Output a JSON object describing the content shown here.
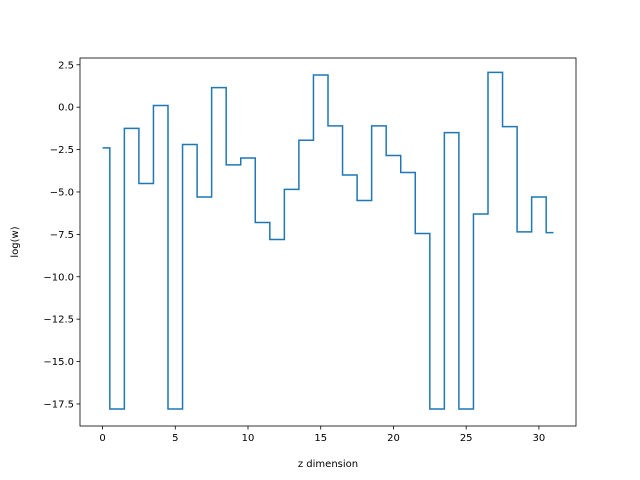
{
  "chart_data": {
    "type": "line",
    "drawstyle": "steps-mid",
    "title": "",
    "xlabel": "z dimension",
    "ylabel": "log(w)",
    "xlim": [
      -1.55,
      32.55
    ],
    "ylim": [
      -18.8,
      2.9
    ],
    "xticks": [
      0,
      5,
      10,
      15,
      20,
      25,
      30
    ],
    "xtick_labels": [
      "0",
      "5",
      "10",
      "15",
      "20",
      "25",
      "30"
    ],
    "yticks": [
      2.5,
      0.0,
      -2.5,
      -5.0,
      -7.5,
      -10.0,
      -12.5,
      -15.0,
      -17.5
    ],
    "ytick_labels": [
      "2.5",
      "0.0",
      "−2.5",
      "−5.0",
      "−7.5",
      "−10.0",
      "−12.5",
      "−15.0",
      "−17.5"
    ],
    "grid": false,
    "series": [
      {
        "color": "#1f77b4",
        "x": [
          0,
          1,
          2,
          3,
          4,
          5,
          6,
          7,
          8,
          9,
          10,
          11,
          12,
          13,
          14,
          15,
          16,
          17,
          18,
          19,
          20,
          21,
          22,
          23,
          24,
          25,
          26,
          27,
          28,
          29,
          30,
          31
        ],
        "y": [
          -2.4,
          -17.8,
          -1.25,
          -4.5,
          0.1,
          -17.8,
          -2.2,
          -5.3,
          1.15,
          -3.4,
          -3.0,
          -6.8,
          -7.8,
          -4.85,
          -1.95,
          1.9,
          -1.1,
          -4.0,
          -5.5,
          -1.1,
          -2.85,
          -3.85,
          -7.45,
          -17.8,
          -1.5,
          -17.8,
          -6.3,
          2.05,
          -1.15,
          -7.35,
          -5.3,
          -7.4
        ]
      }
    ]
  }
}
